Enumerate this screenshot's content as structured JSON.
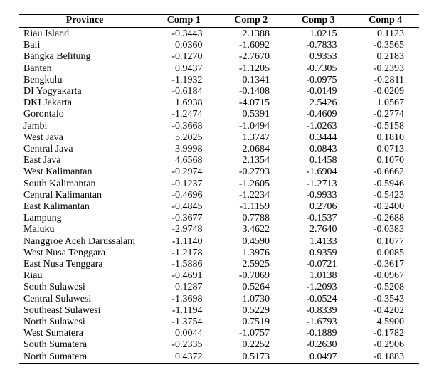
{
  "chart_data": {
    "type": "table",
    "columns": [
      "Province",
      "Comp 1",
      "Comp 2",
      "Comp 3",
      "Comp 4"
    ],
    "rows": [
      [
        "Riau Island",
        "-0.3443",
        "2.1388",
        "1.0215",
        "0.1123"
      ],
      [
        "Bali",
        "0.0360",
        "-1.6092",
        "-0.7833",
        "-0.3565"
      ],
      [
        "Bangka Belitung",
        "-0.1270",
        "-2.7670",
        "0.9353",
        "0.2183"
      ],
      [
        "Banten",
        "0.9437",
        "-1.1205",
        "-0.7305",
        "-0.2393"
      ],
      [
        "Bengkulu",
        "-1.1932",
        "0.1341",
        "-0.0975",
        "-0.2811"
      ],
      [
        "DI Yogyakarta",
        "-0.6184",
        "-0.1408",
        "-0.0149",
        "-0.0209"
      ],
      [
        "DKI Jakarta",
        "1.6938",
        "-4.0715",
        "2.5426",
        "1.0567"
      ],
      [
        "Gorontalo",
        "-1.2474",
        "0.5391",
        "-0.4609",
        "-0.2774"
      ],
      [
        "Jambi",
        "-0.3668",
        "-1.0494",
        "-1.0263",
        "-0.5158"
      ],
      [
        "West Java",
        "5.2025",
        "1.3747",
        "0.3444",
        "0.1810"
      ],
      [
        "Central Java",
        "3.9998",
        "2.0684",
        "0.0843",
        "0.0713"
      ],
      [
        "East Java",
        "4.6568",
        "2.1354",
        "0.1458",
        "0.1070"
      ],
      [
        "West Kalimantan",
        "-0.2974",
        "-0.2793",
        "-1.6904",
        "-0.6662"
      ],
      [
        "South Kalimantan",
        "-0.1237",
        "-1.2605",
        "-1.2713",
        "-0.5946"
      ],
      [
        "Central Kalimantan",
        "-0.4696",
        "-1.2234",
        "-0.9933",
        "-0.5423"
      ],
      [
        "East Kalimantan",
        "-0.4845",
        "-1.1159",
        "0.2706",
        "-0.2400"
      ],
      [
        "Lampung",
        "-0.3677",
        "0.7788",
        "-0.1537",
        "-0.2688"
      ],
      [
        "Maluku",
        "-2.9748",
        "3.4622",
        "2.7640",
        "-0.0383"
      ],
      [
        "Nanggroe Aceh Darussalam",
        "-1.1140",
        "0.4590",
        "1.4133",
        "0.1077"
      ],
      [
        "West Nusa Tenggara",
        "-1.2178",
        "1.3976",
        "0.9359",
        "0.0085"
      ],
      [
        "East Nusa Tenggara",
        "-1.5886",
        "2.5925",
        "-0.0721",
        "-0.3617"
      ],
      [
        "Riau",
        "-0.4691",
        "-0.7069",
        "1.0138",
        "-0.0967"
      ],
      [
        "South Sulawesi",
        "0.1287",
        "0.5264",
        "-1.2093",
        "-0.5208"
      ],
      [
        "Central Sulawesi",
        "-1.3698",
        "1.0730",
        "-0.0524",
        "-0.3543"
      ],
      [
        "Southeast Sulawesi",
        "-1.1194",
        "0.5229",
        "-0.8339",
        "-0.4202"
      ],
      [
        "North Sulawesi",
        "-1.3754",
        "0.7519",
        "-1.6793",
        "4.5900"
      ],
      [
        "West Sumatera",
        "0.0044",
        "-1.0757",
        "-0.1889",
        "-0.1782"
      ],
      [
        "South Sumatera",
        "-0.2335",
        "0.2252",
        "-0.2630",
        "-0.2906"
      ],
      [
        "North Sumatera",
        "0.4372",
        "0.5173",
        "0.0497",
        "-0.1883"
      ]
    ],
    "layout": {
      "border_rules": "top, below-header, bottom",
      "header_bold": true,
      "value_alignment": "right",
      "province_alignment": "left"
    }
  }
}
